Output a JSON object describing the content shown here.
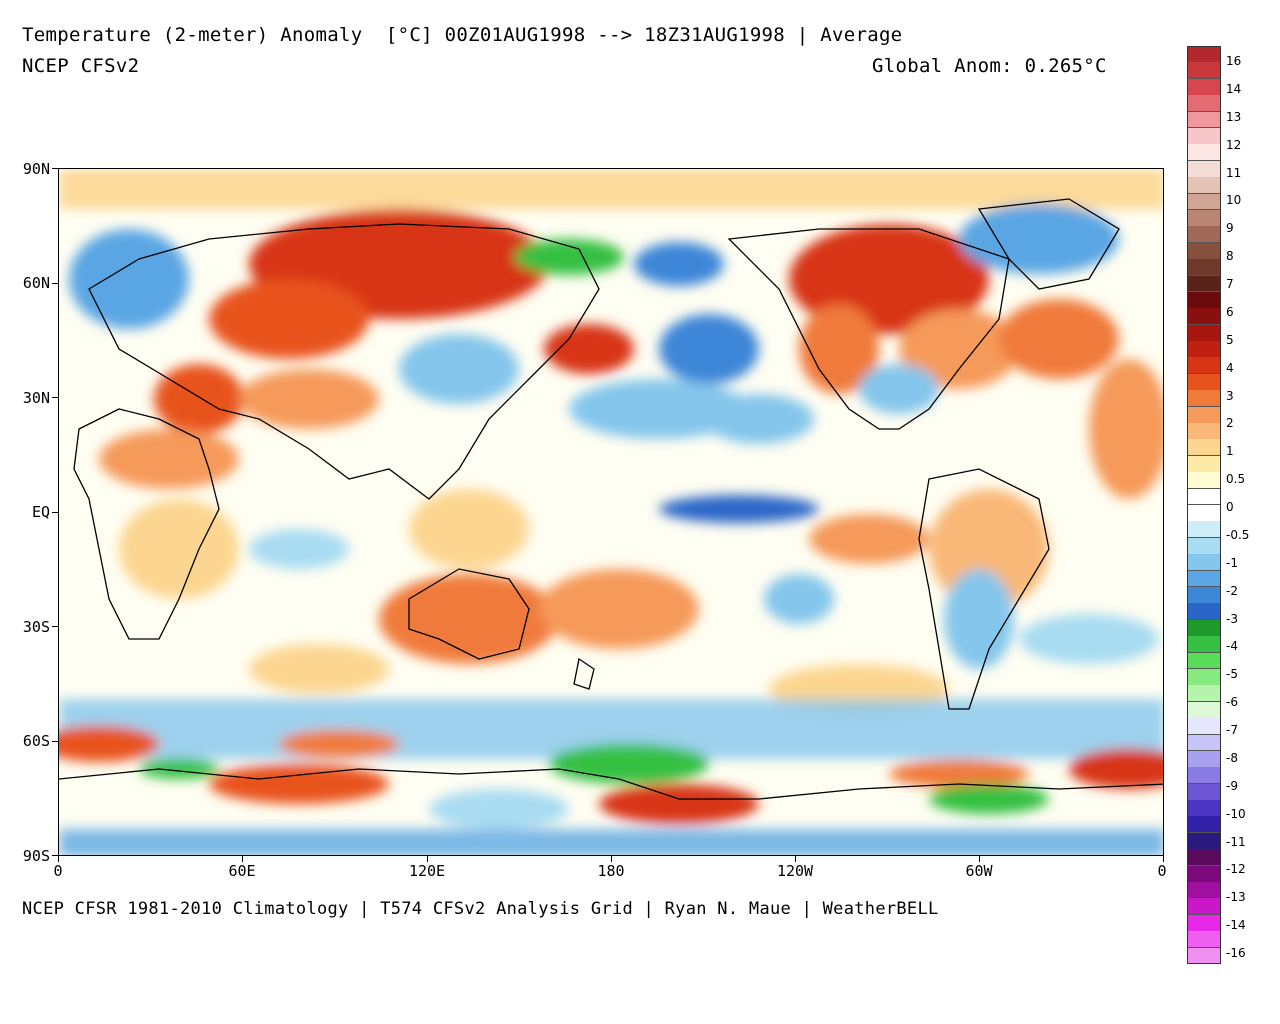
{
  "header": {
    "title": "Temperature (2-meter) Anomaly  [°C] 00Z01AUG1998 --> 18Z31AUG1998 | Average",
    "model": "NCEP CFSv2",
    "global_anom": "Global Anom: 0.265°C"
  },
  "footer": "NCEP CFSR 1981-2010 Climatology | T574 CFSv2 Analysis Grid | Ryan N. Maue | WeatherBELL",
  "axes": {
    "lat_labels": [
      "90N",
      "60N",
      "30N",
      "EQ",
      "30S",
      "60S",
      "90S"
    ],
    "lon_labels": [
      "0",
      "60E",
      "120E",
      "180",
      "120W",
      "60W",
      "0"
    ]
  },
  "colorbar": {
    "labels": [
      "16",
      "14",
      "13",
      "12",
      "11",
      "10",
      "9",
      "8",
      "7",
      "6",
      "5",
      "4",
      "3",
      "2",
      "1",
      "0.5",
      "0",
      "-0.5",
      "-1",
      "-2",
      "-3",
      "-4",
      "-5",
      "-6",
      "-7",
      "-8",
      "-9",
      "-10",
      "-11",
      "-12",
      "-13",
      "-14",
      "-16"
    ],
    "colors": [
      "#b2282d",
      "#c8373a",
      "#d8474f",
      "#e56b73",
      "#f0979e",
      "#f7c6c8",
      "#fbe6e4",
      "#f3ddd6",
      "#e3c3b6",
      "#d0a593",
      "#b98673",
      "#a06856",
      "#86503f",
      "#6e3a2c",
      "#5a2319",
      "#6a0a0a",
      "#8a0f0f",
      "#a8150f",
      "#c02010",
      "#d83515",
      "#e8521c",
      "#f07a3a",
      "#f59a5a",
      "#f9b877",
      "#fcd690",
      "#fdeaa6",
      "#fffbd2",
      "#ffffff",
      "#ffffff",
      "#cdeef8",
      "#a8dcf2",
      "#84c6ec",
      "#5aa6e4",
      "#3d86d8",
      "#2a66c8",
      "#1e9a2a",
      "#36c043",
      "#58dc5a",
      "#86ea80",
      "#b6f4ae",
      "#def9d8",
      "#e6e6ff",
      "#c8c4f8",
      "#aaa0f0",
      "#8a7ce4",
      "#6c56d6",
      "#4c34c4",
      "#3220a8",
      "#2a1a80",
      "#5a0a5a",
      "#7a0a7a",
      "#a010a0",
      "#c818c8",
      "#e828e8",
      "#f060f0",
      "#f090f0"
    ]
  },
  "map": {
    "anomaly_color_warm": "#e8521c",
    "anomaly_color_cool": "#3d86d8",
    "anomaly_color_cold_green": "#36c043",
    "anomaly_color_neutral": "#ffffff",
    "coastline_color": "#000000"
  }
}
